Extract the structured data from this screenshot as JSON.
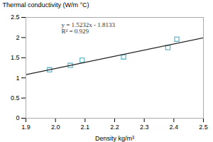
{
  "chart_data": {
    "type": "scatter",
    "xlabel": "Density kg/m³",
    "ylabel": "Thermal conductivity (W/m °C)",
    "series": [
      {
        "type": "scatter",
        "marker": "square",
        "color": "#6ab8c8",
        "x": [
          1.98,
          2.05,
          2.09,
          2.23,
          2.38,
          2.41
        ],
        "values": [
          1.2,
          1.31,
          1.44,
          1.52,
          1.75,
          1.96
        ]
      },
      {
        "type": "line",
        "color": "#222222",
        "x": [
          1.9,
          2.5
        ],
        "values": [
          1.08078,
          1.9947
        ]
      }
    ],
    "annotations": [
      {
        "text": "y = 1.5232x - 1.8133\nR² = 0.929",
        "x": 2.02,
        "y": 2.38
      }
    ],
    "xlim": [
      1.9,
      2.5
    ],
    "ylim": [
      0,
      2.5
    ],
    "xticks": [
      1.9,
      {
        "value": 2.0,
        "label": "2.0"
      },
      2.1,
      2.2,
      2.3,
      2.4,
      {
        "value": 2.5,
        "label": "2.5"
      }
    ],
    "yticks": [
      0,
      0.5,
      1,
      1.5,
      2,
      2.5
    ],
    "grid": false
  }
}
